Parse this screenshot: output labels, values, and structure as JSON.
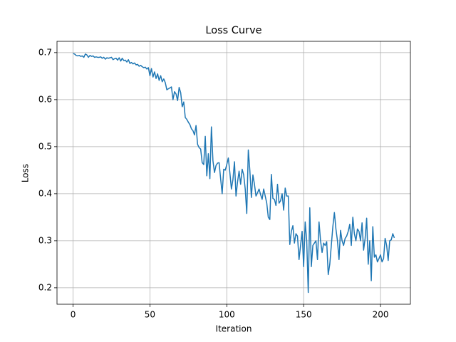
{
  "chart_data": {
    "type": "line",
    "title": "Loss Curve",
    "x_label": "Iteration",
    "y_label": "Loss",
    "x": [
      0,
      1,
      2,
      3,
      4,
      5,
      6,
      7,
      8,
      9,
      10,
      11,
      12,
      13,
      14,
      15,
      16,
      17,
      18,
      19,
      20,
      21,
      22,
      23,
      24,
      25,
      26,
      27,
      28,
      29,
      30,
      31,
      32,
      33,
      34,
      35,
      36,
      37,
      38,
      39,
      40,
      41,
      42,
      43,
      44,
      45,
      46,
      47,
      48,
      49,
      50,
      51,
      52,
      53,
      54,
      55,
      56,
      57,
      58,
      59,
      60,
      61,
      62,
      63,
      64,
      65,
      66,
      67,
      68,
      69,
      70,
      71,
      72,
      73,
      74,
      75,
      76,
      77,
      78,
      79,
      80,
      81,
      82,
      83,
      84,
      85,
      86,
      87,
      88,
      89,
      90,
      91,
      92,
      93,
      94,
      95,
      96,
      97,
      98,
      99,
      100,
      101,
      102,
      103,
      104,
      105,
      106,
      107,
      108,
      109,
      110,
      111,
      112,
      113,
      114,
      115,
      116,
      117,
      118,
      119,
      120,
      121,
      122,
      123,
      124,
      125,
      126,
      127,
      128,
      129,
      130,
      131,
      132,
      133,
      134,
      135,
      136,
      137,
      138,
      139,
      140,
      141,
      142,
      143,
      144,
      145,
      146,
      147,
      148,
      149,
      150,
      151,
      152,
      153,
      154,
      155,
      156,
      157,
      158,
      159,
      160,
      161,
      162,
      163,
      164,
      165,
      166,
      167,
      168,
      169,
      170,
      171,
      172,
      173,
      174,
      175,
      176,
      177,
      178,
      179,
      180,
      181,
      182,
      183,
      184,
      185,
      186,
      187,
      188,
      189,
      190,
      191,
      192,
      193,
      194,
      195,
      196,
      197,
      198,
      199,
      200,
      201,
      202,
      203,
      204,
      205,
      206,
      207,
      208,
      209
    ],
    "series": [
      {
        "name": "Loss",
        "color": "#1f77b4",
        "values": [
          0.698,
          0.697,
          0.694,
          0.693,
          0.694,
          0.692,
          0.693,
          0.69,
          0.697,
          0.695,
          0.69,
          0.694,
          0.692,
          0.693,
          0.69,
          0.691,
          0.69,
          0.69,
          0.691,
          0.688,
          0.69,
          0.686,
          0.689,
          0.688,
          0.689,
          0.69,
          0.685,
          0.687,
          0.688,
          0.684,
          0.689,
          0.682,
          0.688,
          0.683,
          0.684,
          0.68,
          0.685,
          0.677,
          0.679,
          0.676,
          0.678,
          0.674,
          0.675,
          0.671,
          0.673,
          0.67,
          0.668,
          0.669,
          0.665,
          0.668,
          0.651,
          0.666,
          0.648,
          0.659,
          0.645,
          0.655,
          0.641,
          0.651,
          0.638,
          0.644,
          0.636,
          0.621,
          0.623,
          0.625,
          0.627,
          0.6,
          0.617,
          0.612,
          0.598,
          0.626,
          0.615,
          0.585,
          0.595,
          0.562,
          0.558,
          0.552,
          0.547,
          0.538,
          0.534,
          0.525,
          0.545,
          0.505,
          0.498,
          0.495,
          0.466,
          0.462,
          0.522,
          0.438,
          0.485,
          0.432,
          0.542,
          0.47,
          0.445,
          0.46,
          0.465,
          0.466,
          0.432,
          0.4,
          0.452,
          0.45,
          0.462,
          0.476,
          0.445,
          0.41,
          0.43,
          0.468,
          0.395,
          0.425,
          0.448,
          0.42,
          0.452,
          0.44,
          0.41,
          0.358,
          0.493,
          0.45,
          0.392,
          0.44,
          0.42,
          0.395,
          0.402,
          0.41,
          0.398,
          0.388,
          0.41,
          0.395,
          0.38,
          0.35,
          0.345,
          0.441,
          0.39,
          0.388,
          0.375,
          0.42,
          0.38,
          0.385,
          0.4,
          0.365,
          0.412,
          0.395,
          0.395,
          0.292,
          0.32,
          0.332,
          0.295,
          0.315,
          0.31,
          0.26,
          0.29,
          0.32,
          0.245,
          0.34,
          0.3,
          0.19,
          0.37,
          0.245,
          0.29,
          0.295,
          0.3,
          0.26,
          0.34,
          0.3,
          0.275,
          0.295,
          0.29,
          0.298,
          0.228,
          0.25,
          0.29,
          0.33,
          0.36,
          0.325,
          0.3,
          0.26,
          0.322,
          0.3,
          0.29,
          0.305,
          0.31,
          0.32,
          0.335,
          0.29,
          0.35,
          0.315,
          0.3,
          0.325,
          0.32,
          0.3,
          0.338,
          0.28,
          0.305,
          0.348,
          0.25,
          0.3,
          0.215,
          0.33,
          0.265,
          0.27,
          0.255,
          0.262,
          0.27,
          0.255,
          0.262,
          0.305,
          0.29,
          0.258,
          0.3,
          0.302,
          0.315,
          0.306
        ]
      }
    ],
    "xlim": [
      -10.45,
      219.45
    ],
    "ylim": [
      0.165,
      0.724
    ],
    "xticks": [
      0,
      50,
      100,
      150,
      200
    ],
    "yticks": [
      0.2,
      0.3,
      0.4,
      0.5,
      0.6,
      0.7
    ],
    "grid": true
  }
}
